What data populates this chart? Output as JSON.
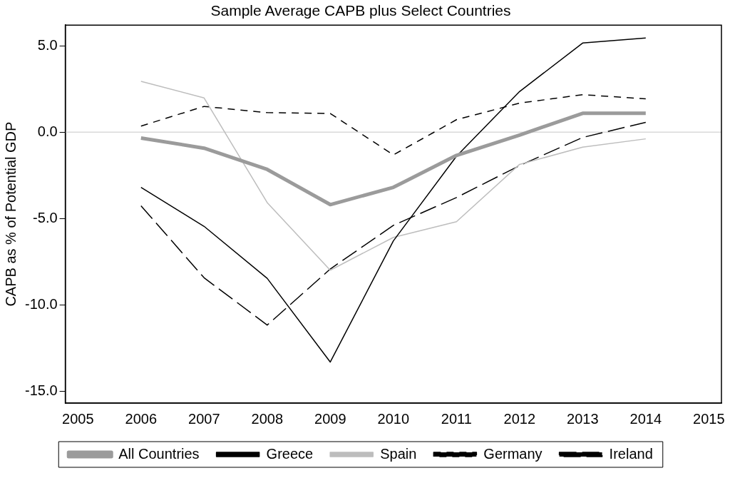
{
  "chart_data": {
    "type": "line",
    "title": "Sample Average CAPB plus Select Countries",
    "ylabel": "CAPB as % of Potential GDP",
    "x": [
      2006,
      2007,
      2008,
      2009,
      2010,
      2011,
      2012,
      2013,
      2014
    ],
    "xlim": [
      2004.8,
      2015.2
    ],
    "xticks": [
      2005,
      2006,
      2007,
      2008,
      2009,
      2010,
      2011,
      2012,
      2013,
      2014,
      2015
    ],
    "ylim": [
      -15.7,
      6.2
    ],
    "yticks": [
      {
        "value": -15,
        "label": "-15.0"
      },
      {
        "value": -10,
        "label": "-10.0"
      },
      {
        "value": -5,
        "label": "-5.0"
      },
      {
        "value": 0,
        "label": "0.0"
      },
      {
        "value": 5,
        "label": "5.0"
      }
    ],
    "grid": false,
    "legend": "bottom",
    "marker": "none",
    "ref_lines": [
      {
        "axis": "y",
        "value": 0,
        "color": "#d9d9d9"
      }
    ],
    "series": [
      {
        "name": "All Countries",
        "color": "#9b9b9b",
        "line_style": "solid",
        "values": [
          -0.34,
          -0.93,
          -2.16,
          -4.2,
          -3.2,
          -1.35,
          -0.17,
          1.09,
          1.09
        ]
      },
      {
        "name": "Greece",
        "color": "#000000",
        "line_style": "solid",
        "values": [
          -3.2,
          -5.46,
          -8.47,
          -13.32,
          -6.3,
          -1.4,
          2.35,
          5.16,
          5.45
        ]
      },
      {
        "name": "Spain",
        "color": "#bdbdbd",
        "line_style": "solid",
        "values": [
          2.94,
          1.98,
          -4.08,
          -8.0,
          -6.1,
          -5.19,
          -1.87,
          -0.87,
          -0.39
        ]
      },
      {
        "name": "Germany",
        "color": "#000000",
        "line_style": "dashed",
        "values": [
          0.35,
          1.49,
          1.13,
          1.08,
          -1.32,
          0.72,
          1.68,
          2.17,
          1.93
        ]
      },
      {
        "name": "Ireland",
        "color": "#000000",
        "line_style": "dashed",
        "values": [
          -4.27,
          -8.44,
          -11.18,
          -7.93,
          -5.4,
          -3.79,
          -1.94,
          -0.31,
          0.57
        ]
      }
    ]
  }
}
